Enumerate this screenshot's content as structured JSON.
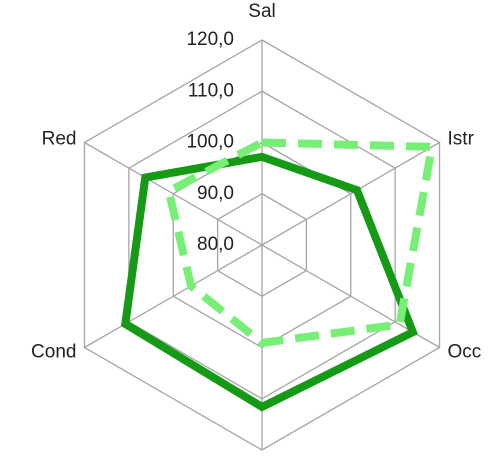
{
  "chart_data": {
    "type": "radar",
    "categories": [
      "Sal",
      "Istr",
      "Occ",
      null,
      "Cond",
      "Red"
    ],
    "ylim": [
      80,
      120
    ],
    "yticks": [
      {
        "value": 80,
        "label": "80,0"
      },
      {
        "value": 90,
        "label": "90,0"
      },
      {
        "value": 100,
        "label": "100,0"
      },
      {
        "value": 110,
        "label": "110,0"
      },
      {
        "value": 120,
        "label": "120,0"
      }
    ],
    "grid": true,
    "series": [
      {
        "color": "#159a15",
        "dashed": false,
        "values": [
          97.2,
          101.4,
          114,
          111.6,
          110.8,
          106.3
        ]
      },
      {
        "color": "#77ef77",
        "dashed": true,
        "values": [
          100,
          118.3,
          111,
          99.1,
          96,
          101
        ]
      }
    ]
  }
}
